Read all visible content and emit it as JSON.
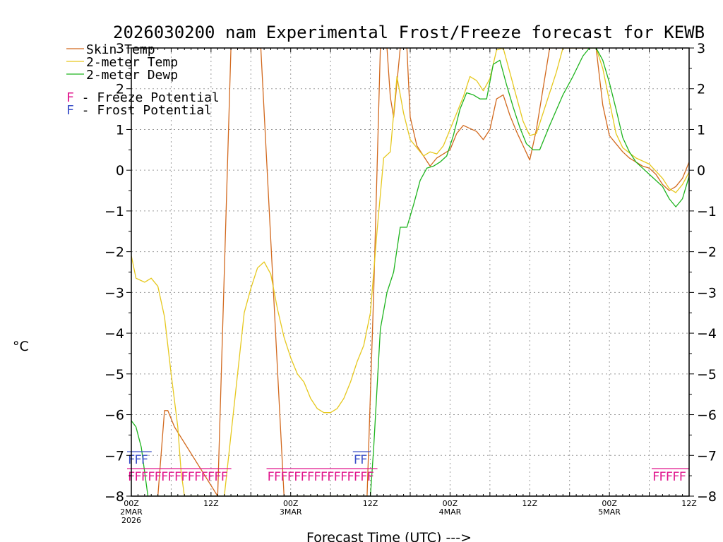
{
  "title": "2026030200 nam Experimental Frost/Freeze forecast for KEWB",
  "xlabel": "Forecast Time (UTC) --->",
  "ylabel": "°C",
  "legend": {
    "skin": "Skin Temp",
    "t2m": "2-meter Temp",
    "td2m": "2-meter Dewp",
    "freeze_letter": "F",
    "freeze_label": " - Freeze Potential",
    "frost_letter": "F",
    "frost_label": " - Frost Potential"
  },
  "colors": {
    "skin": "#d2691e",
    "t2m": "#e6c81e",
    "td2m": "#1eb41e",
    "freeze": "#e0148c",
    "frost": "#3c50c8",
    "grid": "#9a9a9a"
  },
  "chart_data": {
    "type": "line",
    "title": "2026030200 nam Experimental Frost/Freeze forecast for KEWB",
    "xlabel": "Forecast Time (UTC) --->",
    "ylabel": "°C",
    "x_unit": "forecast hour from 2026-03-02 00Z",
    "xlim": [
      0,
      84
    ],
    "ylim": [
      -8,
      3
    ],
    "yticks": [
      -8,
      -7,
      -6,
      -5,
      -4,
      -3,
      -2,
      -1,
      0,
      1,
      2,
      3
    ],
    "x_tick_labels": [
      {
        "x": 0,
        "line1": "00Z",
        "line2": "2MAR",
        "line3": "2026"
      },
      {
        "x": 12,
        "line1": "12Z",
        "line2": "",
        "line3": ""
      },
      {
        "x": 24,
        "line1": "00Z",
        "line2": "3MAR",
        "line3": ""
      },
      {
        "x": 36,
        "line1": "12Z",
        "line2": "",
        "line3": ""
      },
      {
        "x": 48,
        "line1": "00Z",
        "line2": "4MAR",
        "line3": ""
      },
      {
        "x": 60,
        "line1": "12Z",
        "line2": "",
        "line3": ""
      },
      {
        "x": 72,
        "line1": "00Z",
        "line2": "5MAR",
        "line3": ""
      },
      {
        "x": 84,
        "line1": "12Z",
        "line2": "",
        "line3": ""
      }
    ],
    "grid": true,
    "legend_position": "top-left",
    "series": [
      {
        "name": "Skin Temp",
        "color": "#d2691e",
        "x": [
          4,
          5,
          5.5,
          6.5,
          13,
          15,
          19.5,
          23,
          25,
          35.5,
          36.5,
          37.5,
          38.5,
          39,
          39.5,
          40.5,
          41.5,
          42,
          43,
          45,
          46,
          48,
          49,
          50,
          52,
          53,
          54,
          55,
          56,
          57,
          58,
          59,
          60,
          61,
          63,
          64,
          66,
          68,
          69,
          70,
          71,
          72,
          73,
          74,
          75,
          76,
          77,
          78,
          79,
          80,
          81,
          82,
          83,
          84
        ],
        "y": [
          -8.0,
          -5.9,
          -5.9,
          -6.3,
          -8.0,
          3.0,
          3.0,
          -8.0,
          -8.0,
          -8.0,
          -3.0,
          3.0,
          3.0,
          1.8,
          1.3,
          3.0,
          3.0,
          1.3,
          0.6,
          0.1,
          0.3,
          0.5,
          0.9,
          1.1,
          0.95,
          0.75,
          1.0,
          1.75,
          1.85,
          1.35,
          0.95,
          0.6,
          0.25,
          1.0,
          3.0,
          3.0,
          3.0,
          3.0,
          3.0,
          3.0,
          1.6,
          0.85,
          0.65,
          0.45,
          0.3,
          0.2,
          0.1,
          0.05,
          -0.1,
          -0.35,
          -0.5,
          -0.4,
          -0.2,
          0.2
        ]
      },
      {
        "name": "2-meter Temp",
        "color": "#e6c81e",
        "x": [
          0,
          0.7,
          2,
          3,
          4,
          5,
          6,
          7,
          7.5,
          8,
          14,
          16,
          17,
          18,
          19,
          20,
          21,
          22,
          23,
          24,
          25,
          26,
          27,
          28,
          29,
          30,
          31,
          32,
          33,
          34,
          35,
          36,
          37,
          38,
          39,
          40,
          41,
          42,
          44,
          45,
          46,
          47,
          49,
          50,
          51,
          52,
          53,
          54,
          55,
          56,
          57,
          58,
          59,
          60,
          61,
          62,
          63,
          64,
          65,
          66,
          67,
          68,
          69,
          70,
          71,
          72,
          73,
          74,
          76,
          78,
          80,
          81,
          82,
          83,
          84
        ],
        "y": [
          -2.1,
          -2.65,
          -2.75,
          -2.65,
          -2.85,
          -3.6,
          -5.0,
          -6.3,
          -7.4,
          -8.0,
          -8.0,
          -5.0,
          -3.5,
          -2.9,
          -2.4,
          -2.25,
          -2.55,
          -3.4,
          -4.1,
          -4.6,
          -5.0,
          -5.2,
          -5.6,
          -5.85,
          -5.95,
          -5.95,
          -5.85,
          -5.6,
          -5.2,
          -4.7,
          -4.3,
          -3.5,
          -1.5,
          0.3,
          0.45,
          2.3,
          1.4,
          0.75,
          0.35,
          0.45,
          0.4,
          0.6,
          1.4,
          1.8,
          2.3,
          2.2,
          1.95,
          2.25,
          2.95,
          3.0,
          2.4,
          1.8,
          1.2,
          0.85,
          0.9,
          1.4,
          1.9,
          2.4,
          3.0,
          3.0,
          3.0,
          3.0,
          3.0,
          3.0,
          2.5,
          1.7,
          0.9,
          0.55,
          0.3,
          0.15,
          -0.2,
          -0.45,
          -0.55,
          -0.35,
          -0.05
        ]
      },
      {
        "name": "2-meter Dewp",
        "color": "#1eb41e",
        "x": [
          0,
          0.7,
          1.5,
          2.5,
          36,
          36.5,
          37.5,
          38.5,
          39.5,
          40.5,
          41.5,
          42.5,
          43.5,
          44.5,
          45.5,
          46.5,
          47.5,
          48.5,
          49.5,
          50.5,
          51.5,
          52.5,
          53.5,
          54.5,
          55.5,
          56.5,
          57.5,
          58.5,
          59.5,
          60.5,
          61.5,
          63,
          65,
          66.5,
          68,
          69,
          70,
          71,
          72,
          73,
          74,
          75,
          76,
          77,
          78,
          79,
          80,
          81,
          82,
          83,
          84
        ],
        "y": [
          -6.15,
          -6.3,
          -6.8,
          -8.0,
          -8.0,
          -6.8,
          -3.9,
          -3.0,
          -2.5,
          -1.4,
          -1.4,
          -0.85,
          -0.25,
          0.05,
          0.1,
          0.2,
          0.35,
          0.85,
          1.5,
          1.9,
          1.85,
          1.75,
          1.75,
          2.6,
          2.7,
          2.1,
          1.55,
          1.05,
          0.65,
          0.5,
          0.5,
          1.1,
          1.85,
          2.3,
          2.8,
          3.0,
          3.0,
          2.7,
          2.15,
          1.5,
          0.8,
          0.45,
          0.2,
          0.05,
          -0.1,
          -0.25,
          -0.4,
          -0.7,
          -0.9,
          -0.7,
          -0.15
        ]
      }
    ],
    "frost_potential_hours": [
      0,
      1,
      2,
      34,
      35
    ],
    "freeze_potential_hours": [
      0,
      1,
      2,
      3,
      4,
      5,
      6,
      7,
      8,
      9,
      10,
      11,
      12,
      13,
      14,
      21,
      22,
      23,
      24,
      25,
      26,
      27,
      28,
      29,
      30,
      31,
      32,
      33,
      34,
      35,
      36,
      79,
      80,
      81,
      82,
      83
    ]
  }
}
